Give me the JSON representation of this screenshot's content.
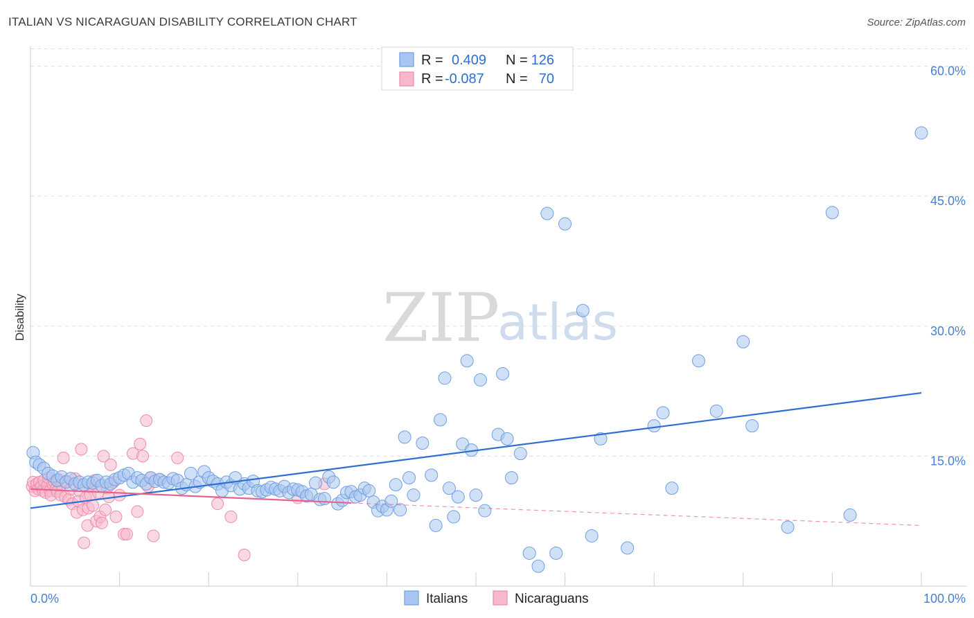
{
  "title": "ITALIAN VS NICARAGUAN DISABILITY CORRELATION CHART",
  "source": "Source: ZipAtlas.com",
  "watermark": {
    "zip": "ZIP",
    "atlas": "atlas"
  },
  "legend": {
    "rows": [
      {
        "r_label": "R =",
        "r_value": "0.409",
        "n_label": "N =",
        "n_value": "126"
      },
      {
        "r_label": "R =",
        "r_value": "-0.087",
        "n_label": "N =",
        "n_value": "70"
      }
    ]
  },
  "colors": {
    "italians_fill": "#a9c6f0",
    "italians_stroke": "#6f9ee0",
    "italians_line": "#2d6fd0",
    "nicaraguans_fill": "#f6b8cc",
    "nicaraguans_stroke": "#ee8aaa",
    "nicaraguans_line": "#e8628e",
    "grid": "#dddddd"
  },
  "chart_data": {
    "type": "scatter",
    "title": "ITALIAN VS NICARAGUAN DISABILITY CORRELATION CHART",
    "xlabel": "",
    "ylabel": "Disability",
    "xlim": [
      0,
      100
    ],
    "ylim": [
      0,
      63
    ],
    "x_tick_labels": [
      "0.0%",
      "100.0%"
    ],
    "y_ticks": [
      15,
      30,
      45,
      60
    ],
    "y_tick_labels": [
      "15.0%",
      "30.0%",
      "45.0%",
      "60.0%"
    ],
    "grid": true,
    "legend_position": "top-center",
    "series": [
      {
        "name": "Italians",
        "R": 0.409,
        "N": 126,
        "trend": {
          "x0": 0,
          "y0": 9.0,
          "x1": 100,
          "y1": 22.3
        },
        "points": [
          [
            0.3,
            15.4
          ],
          [
            0.6,
            14.3
          ],
          [
            1.0,
            14.0
          ],
          [
            1.5,
            13.6
          ],
          [
            2.0,
            13.0
          ],
          [
            2.5,
            12.7
          ],
          [
            3.0,
            12.2
          ],
          [
            3.5,
            12.6
          ],
          [
            4.0,
            12.0
          ],
          [
            4.5,
            12.4
          ],
          [
            5.0,
            11.8
          ],
          [
            5.5,
            12.0
          ],
          [
            6.0,
            11.7
          ],
          [
            6.5,
            12.0
          ],
          [
            7.0,
            11.9
          ],
          [
            7.5,
            12.2
          ],
          [
            8.0,
            11.6
          ],
          [
            8.5,
            12.0
          ],
          [
            9.0,
            11.8
          ],
          [
            9.5,
            12.3
          ],
          [
            10.0,
            12.5
          ],
          [
            10.5,
            12.8
          ],
          [
            11.0,
            13.0
          ],
          [
            11.5,
            12.0
          ],
          [
            12.0,
            12.5
          ],
          [
            12.5,
            12.2
          ],
          [
            13.0,
            11.8
          ],
          [
            13.5,
            12.5
          ],
          [
            14.0,
            12.1
          ],
          [
            14.5,
            12.3
          ],
          [
            15.0,
            12.0
          ],
          [
            15.5,
            11.9
          ],
          [
            16.0,
            12.4
          ],
          [
            16.5,
            12.2
          ],
          [
            17.0,
            11.3
          ],
          [
            17.5,
            11.7
          ],
          [
            18.0,
            13.0
          ],
          [
            18.5,
            11.5
          ],
          [
            19.0,
            12.0
          ],
          [
            19.5,
            13.2
          ],
          [
            20.0,
            12.5
          ],
          [
            20.5,
            12.1
          ],
          [
            21.0,
            11.8
          ],
          [
            21.5,
            11.0
          ],
          [
            22.0,
            12.0
          ],
          [
            22.5,
            11.6
          ],
          [
            23.0,
            12.5
          ],
          [
            23.5,
            11.2
          ],
          [
            24.0,
            11.8
          ],
          [
            24.5,
            11.3
          ],
          [
            25.0,
            12.1
          ],
          [
            25.5,
            11.0
          ],
          [
            26.0,
            10.9
          ],
          [
            26.5,
            11.1
          ],
          [
            27.0,
            11.4
          ],
          [
            27.5,
            11.2
          ],
          [
            28.0,
            11.0
          ],
          [
            28.5,
            11.5
          ],
          [
            29.0,
            10.8
          ],
          [
            29.5,
            11.2
          ],
          [
            30.0,
            11.1
          ],
          [
            30.5,
            10.9
          ],
          [
            31.0,
            10.4
          ],
          [
            31.5,
            10.6
          ],
          [
            32.0,
            11.9
          ],
          [
            32.5,
            10.0
          ],
          [
            33.0,
            10.1
          ],
          [
            33.5,
            12.6
          ],
          [
            34.0,
            12.0
          ],
          [
            34.5,
            9.5
          ],
          [
            35.0,
            9.9
          ],
          [
            35.5,
            10.8
          ],
          [
            36.0,
            10.9
          ],
          [
            36.5,
            10.3
          ],
          [
            37.0,
            10.5
          ],
          [
            37.5,
            11.3
          ],
          [
            38.0,
            11.0
          ],
          [
            38.5,
            9.7
          ],
          [
            39.0,
            8.7
          ],
          [
            39.5,
            9.2
          ],
          [
            40.0,
            8.8
          ],
          [
            40.5,
            9.8
          ],
          [
            41.0,
            11.7
          ],
          [
            41.5,
            8.8
          ],
          [
            42.0,
            17.2
          ],
          [
            42.5,
            12.5
          ],
          [
            43.0,
            10.5
          ],
          [
            44.0,
            16.5
          ],
          [
            45.0,
            12.8
          ],
          [
            45.5,
            7.0
          ],
          [
            46.0,
            19.2
          ],
          [
            46.5,
            24.0
          ],
          [
            47.0,
            11.3
          ],
          [
            47.5,
            8.0
          ],
          [
            48.0,
            10.3
          ],
          [
            48.5,
            16.4
          ],
          [
            49.0,
            26.0
          ],
          [
            49.5,
            15.7
          ],
          [
            50.0,
            10.5
          ],
          [
            50.5,
            23.8
          ],
          [
            51.0,
            8.7
          ],
          [
            52.5,
            17.5
          ],
          [
            53.0,
            24.5
          ],
          [
            53.5,
            17.0
          ],
          [
            54.0,
            12.5
          ],
          [
            55.0,
            15.3
          ],
          [
            56.0,
            3.8
          ],
          [
            57.0,
            2.3
          ],
          [
            58.0,
            43.0
          ],
          [
            59.0,
            3.8
          ],
          [
            60.0,
            41.8
          ],
          [
            62.0,
            31.8
          ],
          [
            63.0,
            5.8
          ],
          [
            64.0,
            17.0
          ],
          [
            67.0,
            4.4
          ],
          [
            70.0,
            18.5
          ],
          [
            71.0,
            20.0
          ],
          [
            72.0,
            11.3
          ],
          [
            75.0,
            26.0
          ],
          [
            77.0,
            20.2
          ],
          [
            80.0,
            28.2
          ],
          [
            81.0,
            18.5
          ],
          [
            85.0,
            6.8
          ],
          [
            90.0,
            43.1
          ],
          [
            92.0,
            8.2
          ],
          [
            100.0,
            52.3
          ]
        ]
      },
      {
        "name": "Nicaraguans",
        "R": -0.087,
        "N": 70,
        "trend": {
          "x0": 0,
          "y0": 11.2,
          "x1": 36,
          "y1": 9.6
        },
        "trend_dashed": {
          "x0": 36,
          "y0": 9.6,
          "x1": 100,
          "y1": 7.0
        },
        "points": [
          [
            0.2,
            11.5
          ],
          [
            0.3,
            12.0
          ],
          [
            0.5,
            11.0
          ],
          [
            0.7,
            11.8
          ],
          [
            0.9,
            11.2
          ],
          [
            1.0,
            12.0
          ],
          [
            1.2,
            11.5
          ],
          [
            1.4,
            11.0
          ],
          [
            1.5,
            12.2
          ],
          [
            1.7,
            10.8
          ],
          [
            1.9,
            11.6
          ],
          [
            2.0,
            12.5
          ],
          [
            2.2,
            11.0
          ],
          [
            2.3,
            10.5
          ],
          [
            2.5,
            11.8
          ],
          [
            2.7,
            12.0
          ],
          [
            2.9,
            11.3
          ],
          [
            3.0,
            10.9
          ],
          [
            3.2,
            12.3
          ],
          [
            3.4,
            10.5
          ],
          [
            3.5,
            11.7
          ],
          [
            3.7,
            14.8
          ],
          [
            3.9,
            10.3
          ],
          [
            4.0,
            12.1
          ],
          [
            4.3,
            10.0
          ],
          [
            4.5,
            11.2
          ],
          [
            4.7,
            9.5
          ],
          [
            5.0,
            12.4
          ],
          [
            5.2,
            8.5
          ],
          [
            5.4,
            9.8
          ],
          [
            5.5,
            11.0
          ],
          [
            5.7,
            15.8
          ],
          [
            5.9,
            8.8
          ],
          [
            6.0,
            5.0
          ],
          [
            6.2,
            10.2
          ],
          [
            6.4,
            7.0
          ],
          [
            6.5,
            9.0
          ],
          [
            6.7,
            10.5
          ],
          [
            6.9,
            11.5
          ],
          [
            7.0,
            9.3
          ],
          [
            7.2,
            12.2
          ],
          [
            7.4,
            7.5
          ],
          [
            7.6,
            10.8
          ],
          [
            7.8,
            8.0
          ],
          [
            8.0,
            7.3
          ],
          [
            8.2,
            15.0
          ],
          [
            8.4,
            8.8
          ],
          [
            8.6,
            11.3
          ],
          [
            8.8,
            10.3
          ],
          [
            9.0,
            14.0
          ],
          [
            9.3,
            12.0
          ],
          [
            9.6,
            8.0
          ],
          [
            10.0,
            10.5
          ],
          [
            10.5,
            6.0
          ],
          [
            10.8,
            6.0
          ],
          [
            11.5,
            15.3
          ],
          [
            12.0,
            8.6
          ],
          [
            12.3,
            16.4
          ],
          [
            12.6,
            15.0
          ],
          [
            13.0,
            19.1
          ],
          [
            13.2,
            11.5
          ],
          [
            13.5,
            12.5
          ],
          [
            13.8,
            5.8
          ],
          [
            14.5,
            12.3
          ],
          [
            16.5,
            14.8
          ],
          [
            21.0,
            9.5
          ],
          [
            22.5,
            8.0
          ],
          [
            24.0,
            3.6
          ],
          [
            30.0,
            10.2
          ],
          [
            33.0,
            11.8
          ]
        ]
      }
    ]
  },
  "bottom_legend": {
    "items": [
      {
        "label": "Italians"
      },
      {
        "label": "Nicaraguans"
      }
    ]
  }
}
